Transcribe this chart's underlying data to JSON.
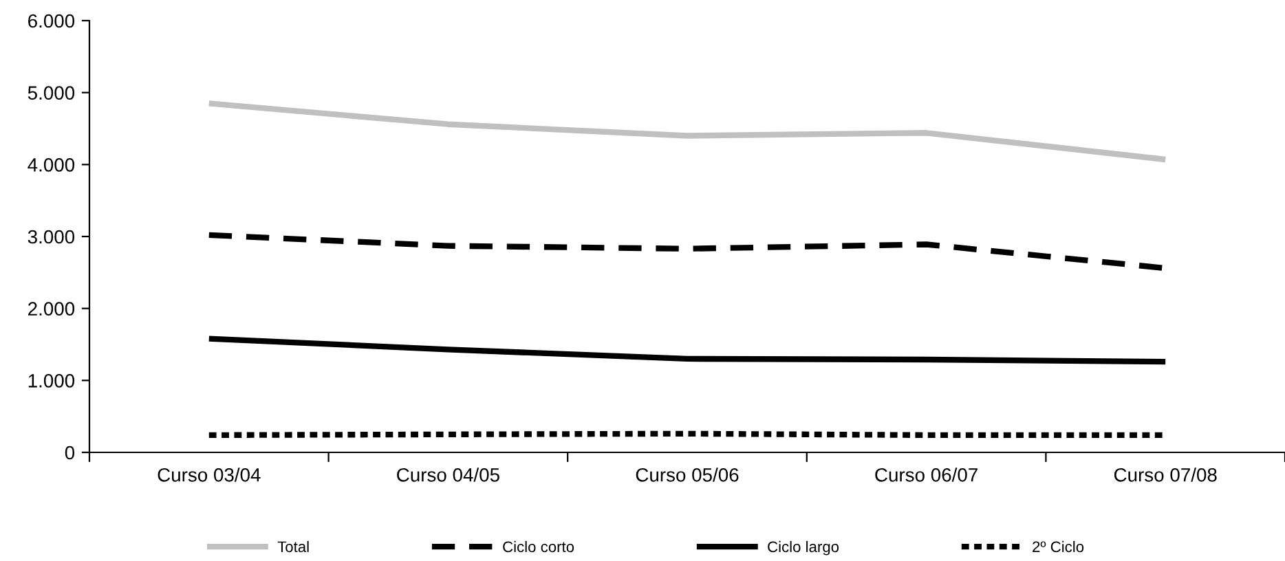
{
  "chart_data": {
    "type": "line",
    "categories": [
      "Curso 03/04",
      "Curso 04/05",
      "Curso 05/06",
      "Curso 06/07",
      "Curso 07/08"
    ],
    "series": [
      {
        "name": "Total",
        "color": "#c0c0c0",
        "line_style": "solid",
        "values": [
          4850,
          4560,
          4400,
          4440,
          4070
        ]
      },
      {
        "name": "Ciclo corto",
        "color": "#000000",
        "line_style": "dashed",
        "values": [
          3020,
          2870,
          2830,
          2890,
          2560
        ]
      },
      {
        "name": "Ciclo largo",
        "color": "#000000",
        "line_style": "solid",
        "values": [
          1580,
          1430,
          1300,
          1290,
          1260
        ]
      },
      {
        "name": "2º Ciclo",
        "color": "#000000",
        "line_style": "dotted",
        "values": [
          240,
          250,
          260,
          240,
          240
        ]
      }
    ],
    "ylim": [
      0,
      6000
    ],
    "yticks": [
      {
        "value": 0,
        "label": "0"
      },
      {
        "value": 1000,
        "label": "1.000"
      },
      {
        "value": 2000,
        "label": "2.000"
      },
      {
        "value": 3000,
        "label": "3.000"
      },
      {
        "value": 4000,
        "label": "4.000"
      },
      {
        "value": 5000,
        "label": "5.000"
      },
      {
        "value": 6000,
        "label": "6.000"
      }
    ],
    "grid": false,
    "legend": "bottom",
    "marker": "none"
  }
}
